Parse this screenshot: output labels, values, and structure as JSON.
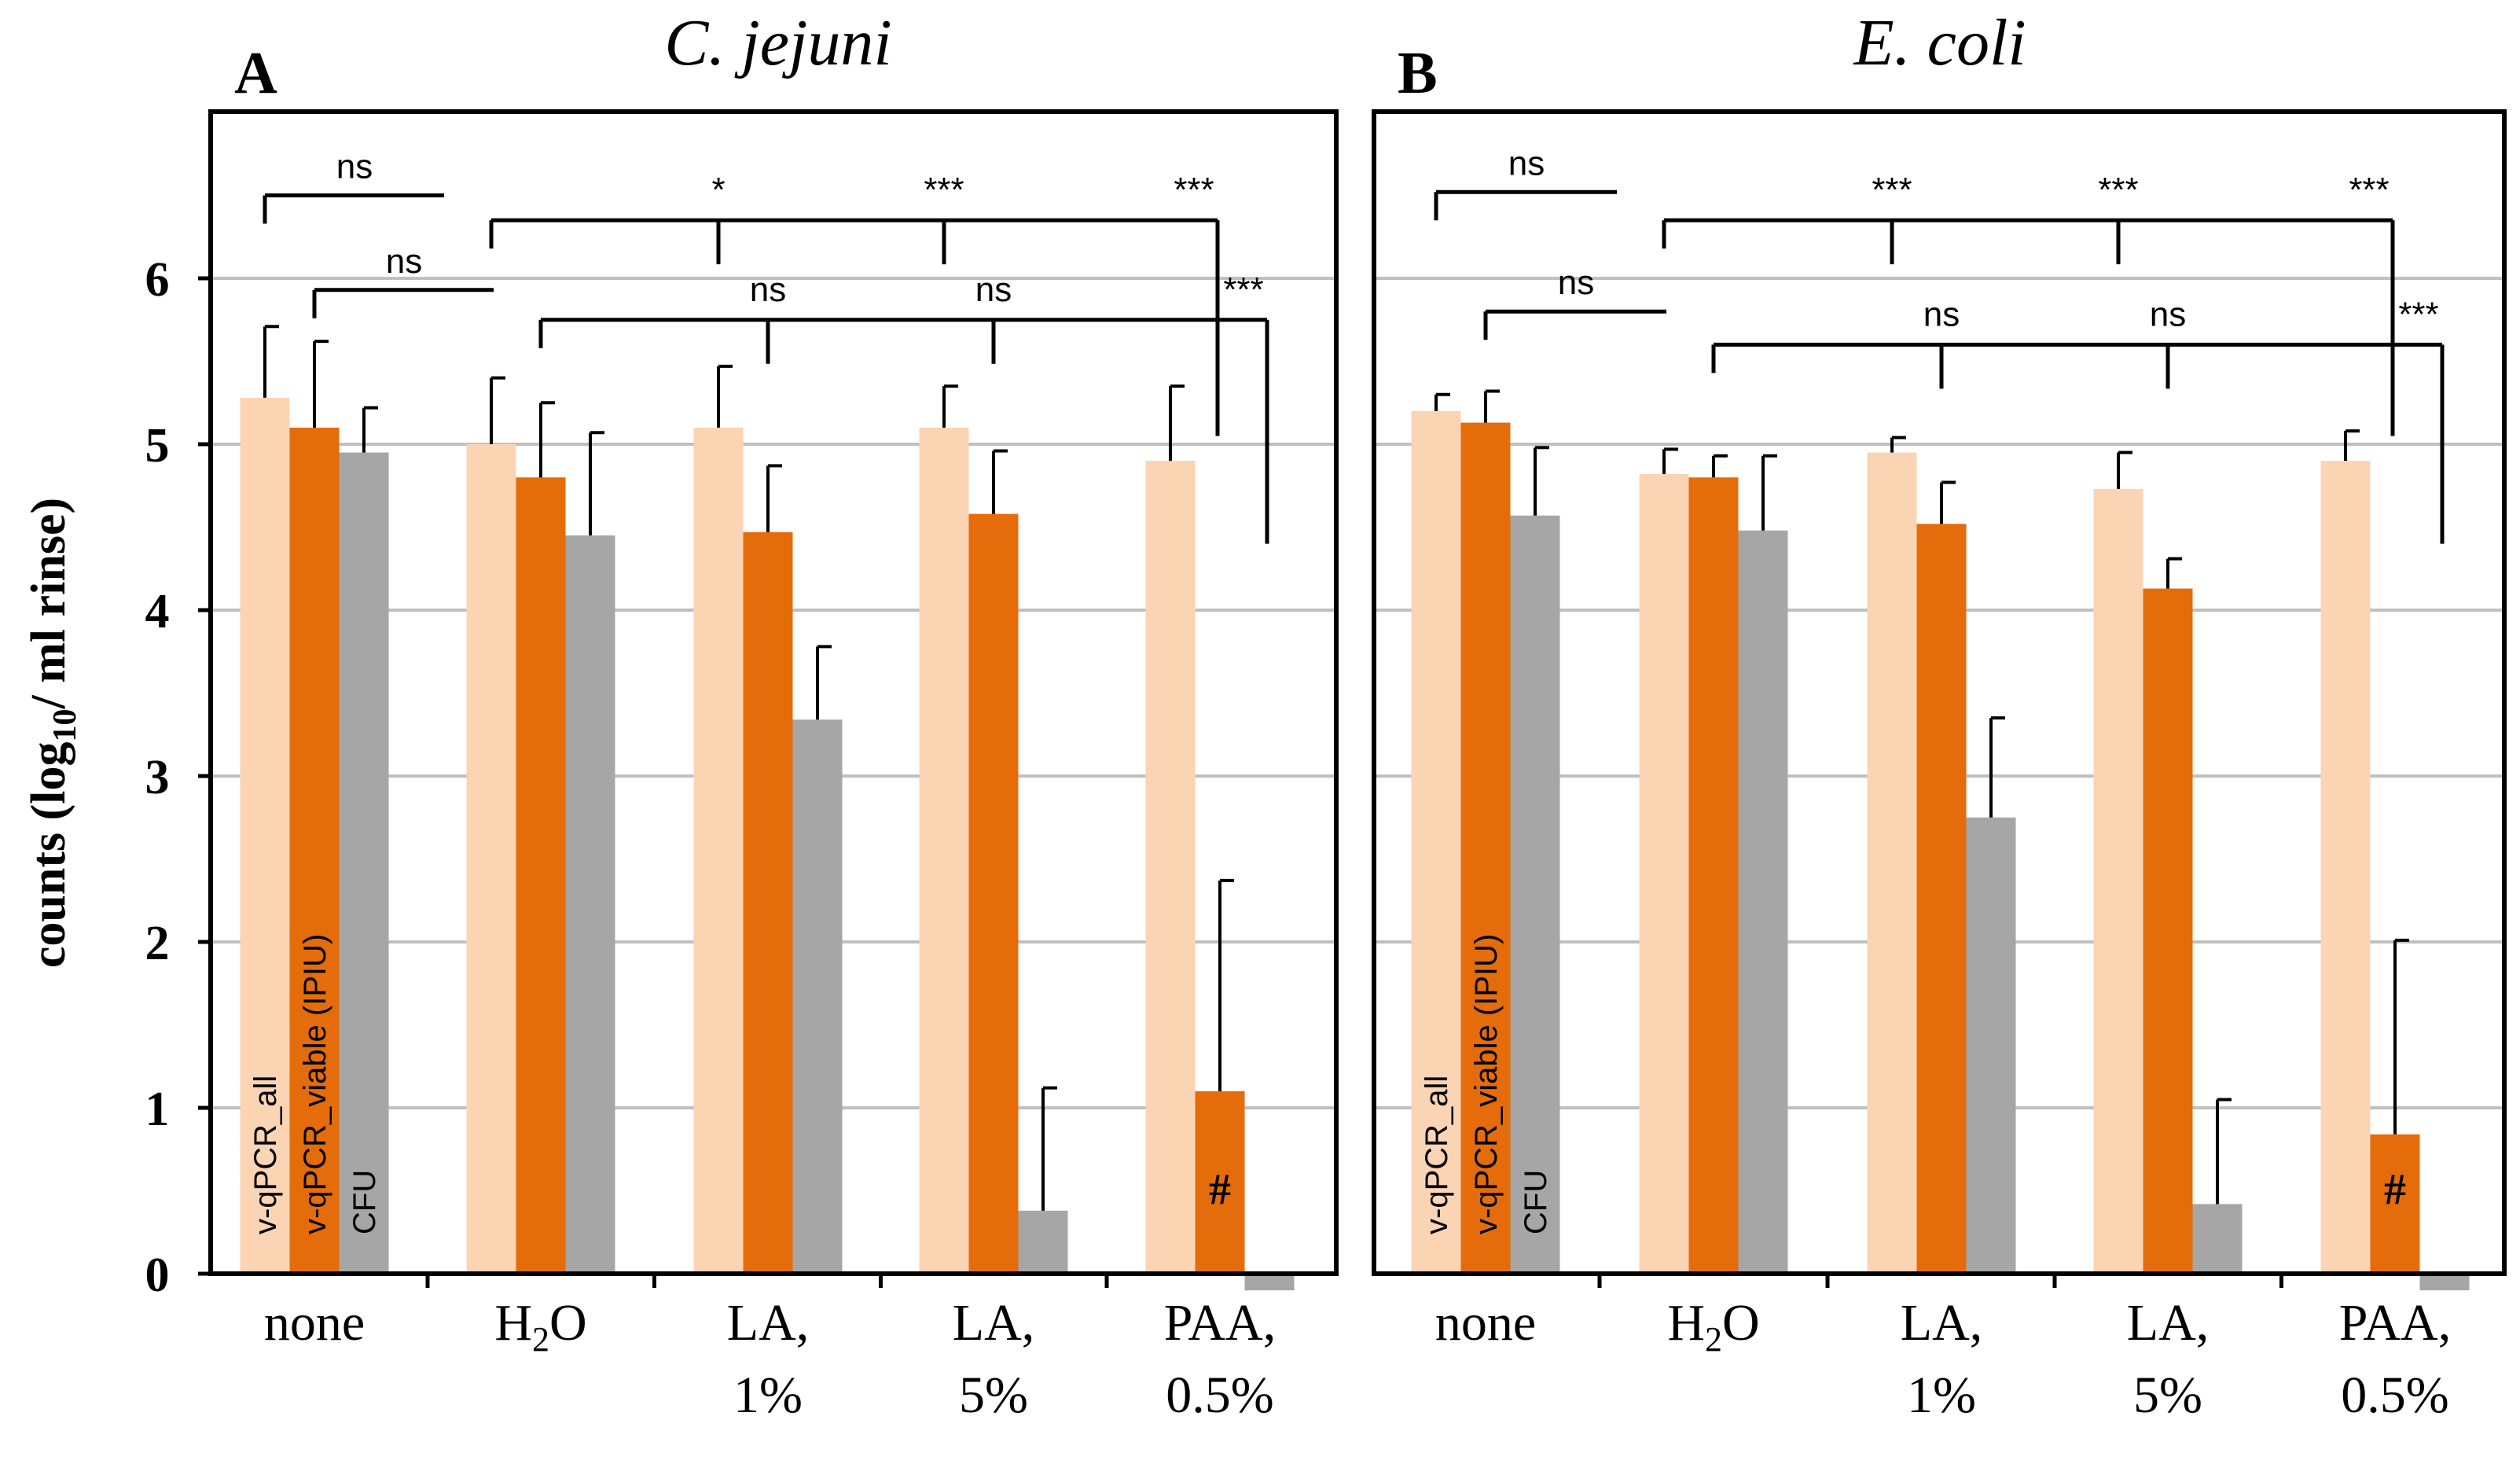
{
  "colors": {
    "v_qpcr_all": "#fbd4b4",
    "v_qpcr_viable": "#e46c0a",
    "cfu": "#a6a6a6",
    "grid": "#c0c0c0",
    "axis": "#000000"
  },
  "y_axis": {
    "label_prefix": "counts (log",
    "label_sub": "10",
    "label_suffix": "/ ml rinse)"
  },
  "chart_data": [
    {
      "type": "bar",
      "panel": "A",
      "title": "C. jejuni",
      "categories": [
        [
          "none"
        ],
        [
          "H",
          "2",
          "O"
        ],
        [
          "LA,",
          "1%"
        ],
        [
          "LA,",
          "5%"
        ],
        [
          "PAA,",
          "0.5%"
        ]
      ],
      "ylim": [
        0,
        7
      ],
      "yticks": [
        0,
        1,
        2,
        3,
        4,
        5,
        6
      ],
      "grid": true,
      "series": [
        {
          "name": "v-qPCR_all",
          "values": [
            5.28,
            5.0,
            5.1,
            5.1,
            4.9
          ],
          "errors": [
            0.43,
            0.4,
            0.37,
            0.25,
            0.45
          ]
        },
        {
          "name": "v-qPCR_viable (IPIU)",
          "values": [
            5.1,
            4.8,
            4.47,
            4.58,
            1.1
          ],
          "errors": [
            0.52,
            0.45,
            0.4,
            0.38,
            1.27
          ]
        },
        {
          "name": "CFU",
          "values": [
            4.95,
            4.45,
            3.34,
            0.38,
            -0.1
          ],
          "errors": [
            0.27,
            0.62,
            0.44,
            0.74,
            0
          ]
        }
      ],
      "annotations": [
        {
          "label": "#",
          "series": 1,
          "category": 4
        }
      ],
      "significance": [
        {
          "label": "ns",
          "from": 0,
          "to": 1,
          "series": "all",
          "level": 6.5
        },
        {
          "label": "ns",
          "from": 0,
          "to": 1,
          "series": "viable",
          "level": 5.93
        },
        {
          "label": "*",
          "from": 1,
          "to": 2,
          "series": "all",
          "level": 6.35
        },
        {
          "label": "***",
          "from": 1,
          "to": 3,
          "series": "all",
          "level": 6.35
        },
        {
          "label": "***",
          "from": 1,
          "to": 4,
          "series": "all",
          "level": 6.35
        },
        {
          "label": "ns",
          "from": 1,
          "to": 2,
          "series": "viable",
          "level": 5.75
        },
        {
          "label": "ns",
          "from": 1,
          "to": 3,
          "series": "viable",
          "level": 5.75
        },
        {
          "label": "***",
          "from": 1,
          "to": 4,
          "series": "viable",
          "level": 5.75
        }
      ]
    },
    {
      "type": "bar",
      "panel": "B",
      "title": "E. coli",
      "categories": [
        [
          "none"
        ],
        [
          "H",
          "2",
          "O"
        ],
        [
          "LA,",
          "1%"
        ],
        [
          "LA,",
          "5%"
        ],
        [
          "PAA,",
          "0.5%"
        ]
      ],
      "ylim": [
        0,
        7
      ],
      "yticks": [
        0,
        1,
        2,
        3,
        4,
        5,
        6
      ],
      "grid": true,
      "series": [
        {
          "name": "v-qPCR_all",
          "values": [
            5.2,
            4.82,
            4.95,
            4.73,
            4.9
          ],
          "errors": [
            0.1,
            0.15,
            0.09,
            0.22,
            0.18
          ]
        },
        {
          "name": "v-qPCR_viable (IPIU)",
          "values": [
            5.13,
            4.8,
            4.52,
            4.13,
            0.84
          ],
          "errors": [
            0.19,
            0.13,
            0.25,
            0.18,
            1.17
          ]
        },
        {
          "name": "CFU",
          "values": [
            4.57,
            4.48,
            2.75,
            0.42,
            -0.1
          ],
          "errors": [
            0.41,
            0.45,
            0.6,
            0.63,
            0
          ]
        }
      ],
      "annotations": [
        {
          "label": "#",
          "series": 1,
          "category": 4
        }
      ],
      "significance": [
        {
          "label": "ns",
          "from": 0,
          "to": 1,
          "series": "all",
          "level": 6.52
        },
        {
          "label": "ns",
          "from": 0,
          "to": 1,
          "series": "viable",
          "level": 5.8
        },
        {
          "label": "***",
          "from": 1,
          "to": 2,
          "series": "all",
          "level": 6.35
        },
        {
          "label": "***",
          "from": 1,
          "to": 3,
          "series": "all",
          "level": 6.35
        },
        {
          "label": "***",
          "from": 1,
          "to": 4,
          "series": "all",
          "level": 6.35
        },
        {
          "label": "ns",
          "from": 1,
          "to": 2,
          "series": "viable",
          "level": 5.6
        },
        {
          "label": "ns",
          "from": 1,
          "to": 3,
          "series": "viable",
          "level": 5.6
        },
        {
          "label": "***",
          "from": 1,
          "to": 4,
          "series": "viable",
          "level": 5.6
        }
      ]
    }
  ]
}
